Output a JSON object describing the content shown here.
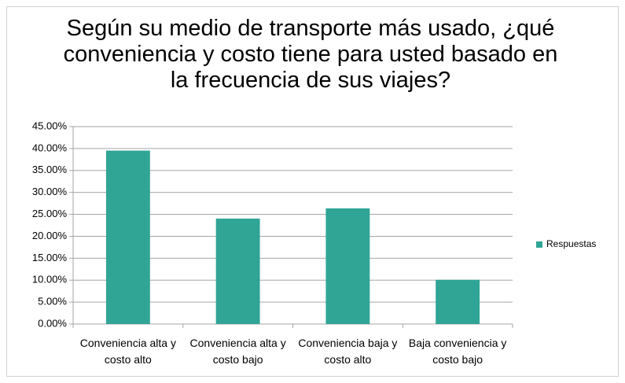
{
  "chart_data": {
    "type": "bar",
    "title": "Según su medio de transporte más usado, ¿qué conveniencia y costo tiene para usted basado en la frecuencia de sus viajes?",
    "categories": [
      "Conveniencia alta y costo alto",
      "Conveniencia alta y costo bajo",
      "Conveniencia baja y costo alto",
      "Baja conveniencia y costo bajo"
    ],
    "series": [
      {
        "name": "Respuestas",
        "color": "#30a596",
        "values": [
          39.53,
          24.03,
          26.36,
          10.08
        ]
      }
    ],
    "ylim": [
      0,
      45
    ],
    "yticks": [
      {
        "value": 0,
        "label": "0.00%"
      },
      {
        "value": 5,
        "label": "5.00%"
      },
      {
        "value": 10,
        "label": "10.00%"
      },
      {
        "value": 15,
        "label": "15.00%"
      },
      {
        "value": 20,
        "label": "20.00%"
      },
      {
        "value": 25,
        "label": "25.00%"
      },
      {
        "value": 30,
        "label": "30.00%"
      },
      {
        "value": 35,
        "label": "35.00%"
      },
      {
        "value": 40,
        "label": "40.00%"
      },
      {
        "value": 45,
        "label": "45.00%"
      }
    ],
    "grid": true,
    "legend": "right"
  }
}
